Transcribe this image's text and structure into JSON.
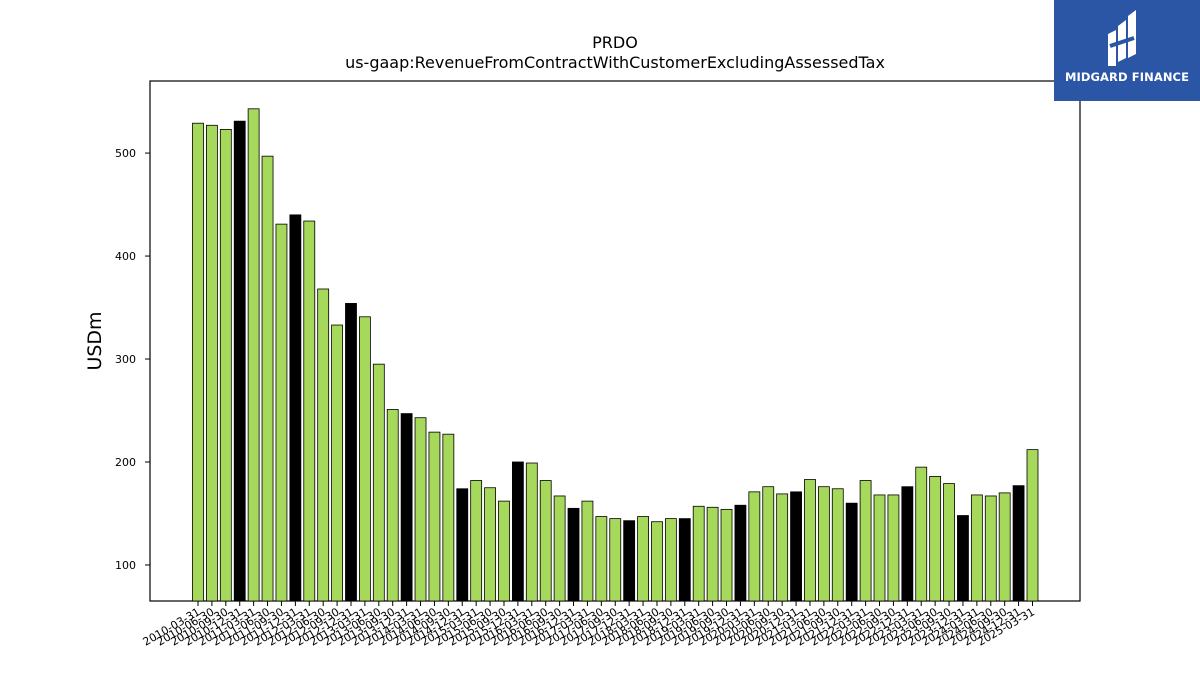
{
  "logo": {
    "text": "MIDGARD FINANCE",
    "background": "#2b56a6"
  },
  "colors": {
    "bar": "#a6d95b",
    "highlight": "#000000",
    "edge": "#000000"
  },
  "chart_data": {
    "type": "bar",
    "title": "PRDO",
    "subtitle": "us-gaap:RevenueFromContractWithCustomerExcludingAssessedTax",
    "xlabel": "",
    "ylabel": "USDm",
    "ylim": [
      65,
      570
    ],
    "yticks": [
      100,
      200,
      300,
      400,
      500
    ],
    "grid": false,
    "categories": [
      "2010-03-31",
      "2010-06-30",
      "2010-09-30",
      "2010-12-31",
      "2011-03-31",
      "2011-06-30",
      "2011-09-30",
      "2011-12-31",
      "2012-03-31",
      "2012-06-30",
      "2012-09-30",
      "2012-12-31",
      "2013-03-31",
      "2013-06-30",
      "2013-09-30",
      "2013-12-31",
      "2014-03-31",
      "2014-06-30",
      "2014-09-30",
      "2014-12-31",
      "2015-03-31",
      "2015-06-30",
      "2015-09-30",
      "2015-12-31",
      "2016-03-31",
      "2016-06-30",
      "2016-09-30",
      "2016-12-31",
      "2017-03-31",
      "2017-06-30",
      "2017-09-30",
      "2017-12-31",
      "2018-03-31",
      "2018-06-30",
      "2018-09-30",
      "2018-12-31",
      "2019-03-31",
      "2019-06-30",
      "2019-09-30",
      "2019-12-31",
      "2020-03-31",
      "2020-06-30",
      "2020-09-30",
      "2020-12-31",
      "2021-03-31",
      "2021-06-30",
      "2021-09-30",
      "2021-12-31",
      "2022-03-31",
      "2022-06-30",
      "2022-09-30",
      "2022-12-31",
      "2023-03-31",
      "2023-06-30",
      "2023-09-30",
      "2023-12-31",
      "2024-03-31",
      "2024-06-30",
      "2024-09-30",
      "2024-12-31",
      "2025-03-31"
    ],
    "values": [
      529,
      527,
      523,
      531,
      543,
      497,
      431,
      440,
      434,
      368,
      333,
      354,
      341,
      295,
      251,
      247,
      243,
      229,
      227,
      174,
      182,
      175,
      162,
      200,
      199,
      182,
      167,
      155,
      162,
      147,
      145,
      143,
      147,
      142,
      145,
      145,
      157,
      156,
      154,
      158,
      171,
      176,
      169,
      171,
      183,
      176,
      174,
      160,
      182,
      168,
      168,
      176,
      195,
      186,
      179,
      148,
      168,
      167,
      170,
      177,
      212
    ],
    "highlight_indices": [
      3,
      7,
      11,
      15,
      19,
      23,
      27,
      31,
      35,
      39,
      43,
      47,
      51,
      55,
      59
    ]
  }
}
